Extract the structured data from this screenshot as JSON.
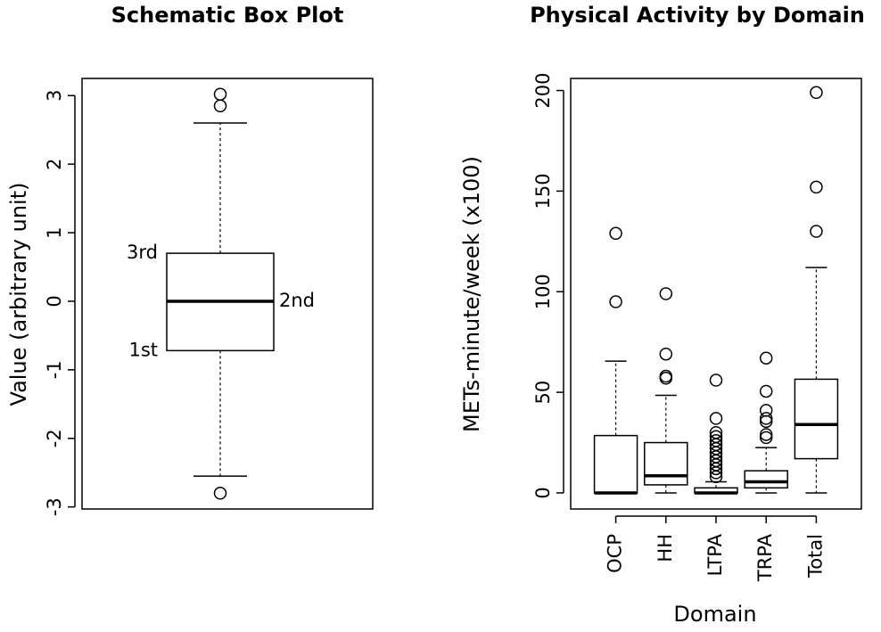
{
  "chart_data": [
    {
      "type": "box",
      "title": "Schematic Box Plot",
      "y_label": "Value (arbitrary unit)",
      "ylim": [
        -3.03,
        3.25
      ],
      "yticks": [
        -3,
        -2,
        -1,
        0,
        1,
        2,
        3
      ],
      "boxes": [
        {
          "q1": -0.72,
          "median": 0,
          "q3": 0.7,
          "whisker_low": -2.55,
          "whisker_high": 2.6,
          "outliers": [
            3.02,
            2.85,
            -2.8
          ]
        }
      ],
      "annotations": [
        "3rd",
        "2nd",
        "1st"
      ]
    },
    {
      "type": "box",
      "title": "Physical Activity by Domain",
      "y_label": "METs-minute/week (x100)",
      "x_label": "Domain",
      "ylim": [
        -8,
        206
      ],
      "yticks": [
        0,
        50,
        100,
        150,
        200
      ],
      "categories": [
        "OCP",
        "HH",
        "LTPA",
        "TRPA",
        "Total"
      ],
      "boxes": [
        {
          "q1": 0,
          "median": 0,
          "q3": 28.5,
          "whisker_low": 0,
          "whisker_high": 65.5,
          "outliers": [
            129,
            95
          ]
        },
        {
          "q1": 4,
          "median": 8.5,
          "q3": 25,
          "whisker_low": 0,
          "whisker_high": 48.5,
          "outliers": [
            99,
            69,
            58,
            57
          ]
        },
        {
          "q1": 0,
          "median": 0,
          "q3": 2.5,
          "whisker_low": 0,
          "whisker_high": 5.5,
          "outliers": [
            56,
            37,
            30,
            28,
            26,
            24,
            22,
            20,
            18,
            16,
            14,
            12,
            10,
            8
          ]
        },
        {
          "q1": 2.5,
          "median": 5.5,
          "q3": 11,
          "whisker_low": 0,
          "whisker_high": 22.5,
          "outliers": [
            67,
            50.5,
            41,
            37,
            35.5,
            29,
            27.5
          ]
        },
        {
          "q1": 17,
          "median": 34,
          "q3": 56.5,
          "whisker_low": 0,
          "whisker_high": 112,
          "outliers": [
            199,
            152,
            130
          ]
        }
      ]
    }
  ]
}
